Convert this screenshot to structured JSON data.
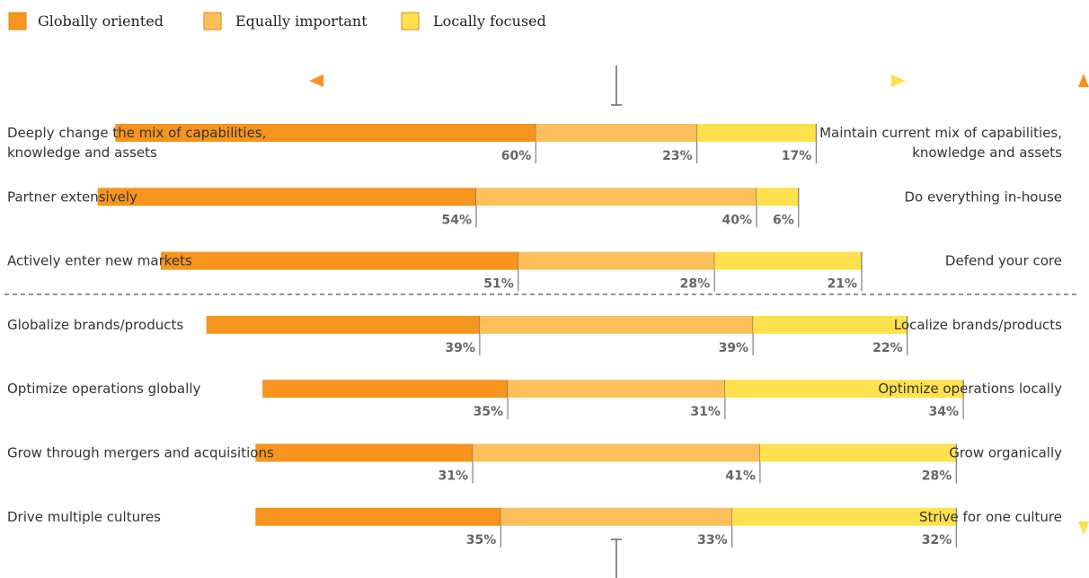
{
  "colors": {
    "globally": "#f7941d",
    "equally": "#fcbf5c",
    "locally": "#ffe14d",
    "legend_border": "#e08a10",
    "divider": "#555555",
    "tick": "#666666"
  },
  "chart_data": {
    "type": "bar",
    "stacked": true,
    "orientation": "horizontal",
    "legend": {
      "placement": "top-left",
      "entries": [
        {
          "key": "globally",
          "label": "Globally oriented"
        },
        {
          "key": "equally",
          "label": "Equally important"
        },
        {
          "key": "locally",
          "label": "Locally focused"
        }
      ]
    },
    "rows": [
      {
        "left_label": [
          "Deeply change the mix of capabilities,",
          "knowledge and assets"
        ],
        "right_label": [
          "Maintain current mix of capabilities,",
          "knowledge and assets"
        ],
        "globally": 60,
        "equally": 23,
        "locally": 17
      },
      {
        "left_label": [
          "Partner extensively"
        ],
        "right_label": [
          "Do everything in-house"
        ],
        "globally": 54,
        "equally": 40,
        "locally": 6
      },
      {
        "left_label": [
          "Actively enter new markets"
        ],
        "right_label": [
          "Defend your core"
        ],
        "globally": 51,
        "equally": 28,
        "locally": 21
      },
      {
        "left_label": [
          "Globalize brands/products"
        ],
        "right_label": [
          "Localize brands/products"
        ],
        "globally": 39,
        "equally": 39,
        "locally": 22
      },
      {
        "left_label": [
          "Optimize operations globally"
        ],
        "right_label": [
          "Optimize operations locally"
        ],
        "globally": 35,
        "equally": 31,
        "locally": 34
      },
      {
        "left_label": [
          "Grow through mergers and acquisitions"
        ],
        "right_label": [
          "Grow organically"
        ],
        "globally": 31,
        "equally": 41,
        "locally": 28
      },
      {
        "left_label": [
          "Drive multiple cultures"
        ],
        "right_label": [
          "Strive for one culture"
        ],
        "globally": 35,
        "equally": 33,
        "locally": 32
      }
    ],
    "value_suffix": "%",
    "group_divider_after_row": 2,
    "center_value": 50
  }
}
